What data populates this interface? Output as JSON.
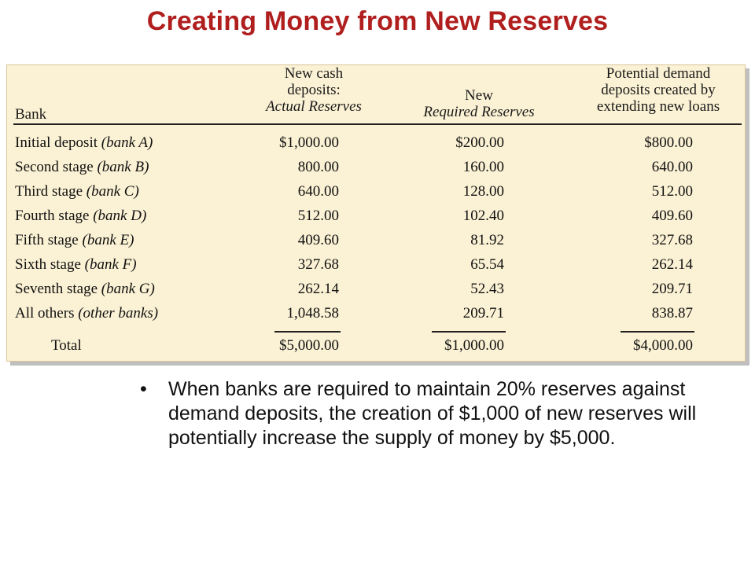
{
  "title": "Creating Money from New Reserves",
  "table": {
    "headers": {
      "bank": "Bank",
      "cash_line1": "New cash",
      "cash_line2": "deposits:",
      "cash_line3": "Actual Reserves",
      "req_line1": "New",
      "req_line2": "Required Reserves",
      "pot_line1": "Potential demand",
      "pot_line2": "deposits created by",
      "pot_line3": "extending new loans"
    },
    "rows": [
      {
        "stage": "Initial deposit",
        "bank": "(bank A)",
        "cash": "$1,000.00",
        "required": "$200.00",
        "potential": "$800.00"
      },
      {
        "stage": "Second stage",
        "bank": "(bank B)",
        "cash": "800.00",
        "required": "160.00",
        "potential": "640.00"
      },
      {
        "stage": "Third stage",
        "bank": "(bank C)",
        "cash": "640.00",
        "required": "128.00",
        "potential": "512.00"
      },
      {
        "stage": "Fourth stage",
        "bank": "(bank D)",
        "cash": "512.00",
        "required": "102.40",
        "potential": "409.60"
      },
      {
        "stage": "Fifth stage",
        "bank": "(bank E)",
        "cash": "409.60",
        "required": "81.92",
        "potential": "327.68"
      },
      {
        "stage": "Sixth stage",
        "bank": "(bank F)",
        "cash": "327.68",
        "required": "65.54",
        "potential": "262.14"
      },
      {
        "stage": "Seventh stage",
        "bank": "(bank G)",
        "cash": "262.14",
        "required": "52.43",
        "potential": "209.71"
      },
      {
        "stage": "All others",
        "bank": "(other banks)",
        "cash": "1,048.58",
        "required": "209.71",
        "potential": "838.87"
      }
    ],
    "total": {
      "label": "Total",
      "cash": "$5,000.00",
      "required": "$1,000.00",
      "potential": "$4,000.00"
    }
  },
  "bullet": {
    "symbol": "•",
    "text": "When banks are required to maintain 20% reserves against demand deposits, the creation of $1,000 of new reserves will potentially increase the supply of money by $5,000."
  },
  "colors": {
    "title": "#b01e1e",
    "panel": "#fbf1d4"
  }
}
